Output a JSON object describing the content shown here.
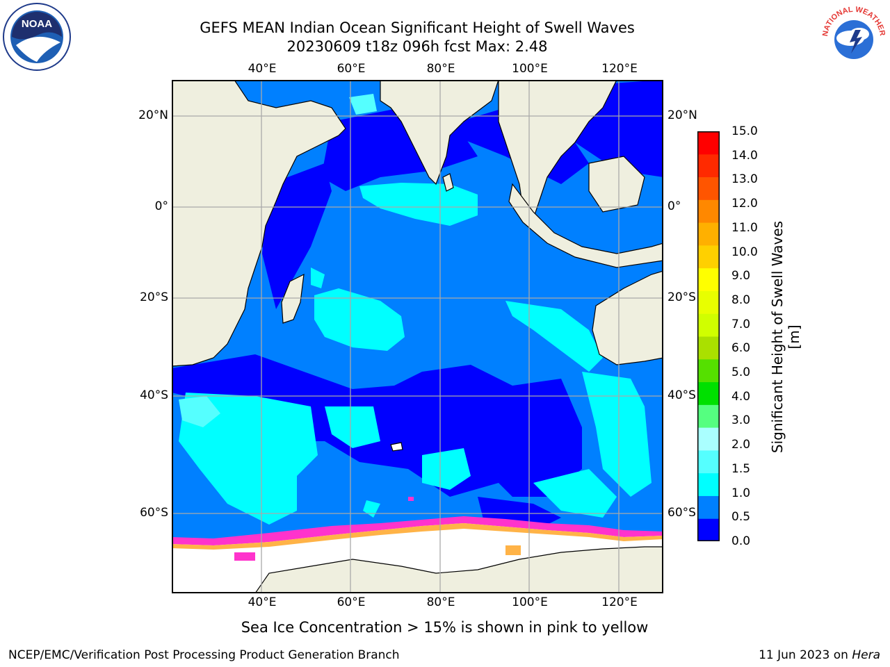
{
  "title": {
    "line1": "GEFS MEAN Indian Ocean Significant Height of Swell Waves",
    "line2": "20230609 t18z 096h fcst    Max: 2.48"
  },
  "map": {
    "lon_labels": [
      "40°E",
      "60°E",
      "80°E",
      "100°E",
      "120°E"
    ],
    "lat_labels": [
      "20°N",
      "0°",
      "20°S",
      "40°S",
      "60°S"
    ]
  },
  "colorbar": {
    "ticks": [
      "15.0",
      "14.0",
      "13.0",
      "12.0",
      "11.0",
      "10.0",
      "9.0",
      "8.0",
      "7.0",
      "6.0",
      "5.0",
      "4.0",
      "3.0",
      "2.0",
      "1.5",
      "1.0",
      "0.5",
      "0.0"
    ],
    "label": "Significant Height of Swell Waves [m]",
    "colors": [
      "#0000ff",
      "#0080ff",
      "#00ffff",
      "#55ffff",
      "#aaffff",
      "#55ff80",
      "#00e000",
      "#55e000",
      "#aae000",
      "#d0ff00",
      "#e8ff00",
      "#ffff00",
      "#ffd000",
      "#ffb000",
      "#ff8800",
      "#ff5500",
      "#ff2a00",
      "#ff0000"
    ]
  },
  "legend_note": "Sea Ice Concentration > 15% is shown in pink to yellow",
  "footer": {
    "left": "NCEP/EMC/Verification Post Processing Product Generation Branch",
    "right_prefix": "11 Jun 2023 on ",
    "right_host": "Hera"
  },
  "logos": {
    "left": "noaa-logo",
    "right": "national-weather-service-logo",
    "nws_text": "NATIONAL WEATHER SERVICE"
  }
}
